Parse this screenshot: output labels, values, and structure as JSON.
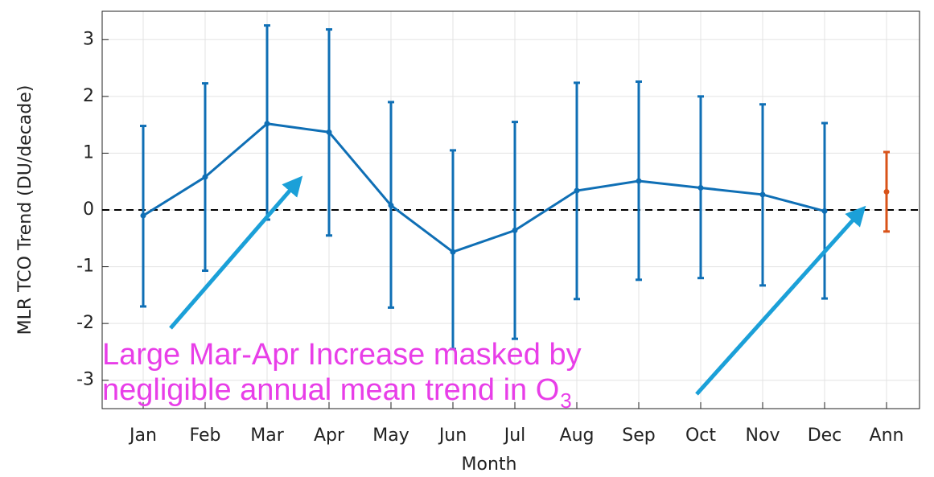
{
  "chart_data": {
    "type": "errorbar",
    "x_label": "Month",
    "y_label": "MLR TCO Trend (DU/decade)",
    "categories": [
      "Jan",
      "Feb",
      "Mar",
      "Apr",
      "May",
      "Jun",
      "Jul",
      "Aug",
      "Sep",
      "Oct",
      "Nov",
      "Dec",
      "Ann"
    ],
    "series": [
      {
        "color": "#0f6fb5",
        "values": [
          -0.1,
          0.58,
          1.52,
          1.37,
          0.08,
          -0.74,
          -0.36,
          0.34,
          0.51,
          0.39,
          0.27,
          -0.02,
          null
        ],
        "lower": [
          -1.7,
          -1.07,
          -0.17,
          -0.45,
          -1.72,
          -2.45,
          -2.27,
          -1.57,
          -1.23,
          -1.2,
          -1.33,
          -1.56,
          null
        ],
        "upper": [
          1.48,
          2.23,
          3.25,
          3.18,
          1.9,
          1.05,
          1.55,
          2.24,
          2.26,
          2.0,
          1.86,
          1.53,
          null
        ]
      },
      {
        "color": "#d95319",
        "values": [
          null,
          null,
          null,
          null,
          null,
          null,
          null,
          null,
          null,
          null,
          null,
          null,
          0.32
        ],
        "lower": [
          null,
          null,
          null,
          null,
          null,
          null,
          null,
          null,
          null,
          null,
          null,
          null,
          -0.38
        ],
        "upper": [
          null,
          null,
          null,
          null,
          null,
          null,
          null,
          null,
          null,
          null,
          null,
          null,
          1.02
        ]
      }
    ],
    "ylim": [
      -3.5,
      3.5
    ],
    "yticks": [
      -3,
      -2,
      -1,
      0,
      1,
      2,
      3
    ],
    "grid": true,
    "annotation": {
      "lines": [
        "Large Mar-Apr Increase masked by",
        "negligible annual mean trend in O"
      ],
      "subscript": "3",
      "color": "#e83ee8"
    }
  }
}
